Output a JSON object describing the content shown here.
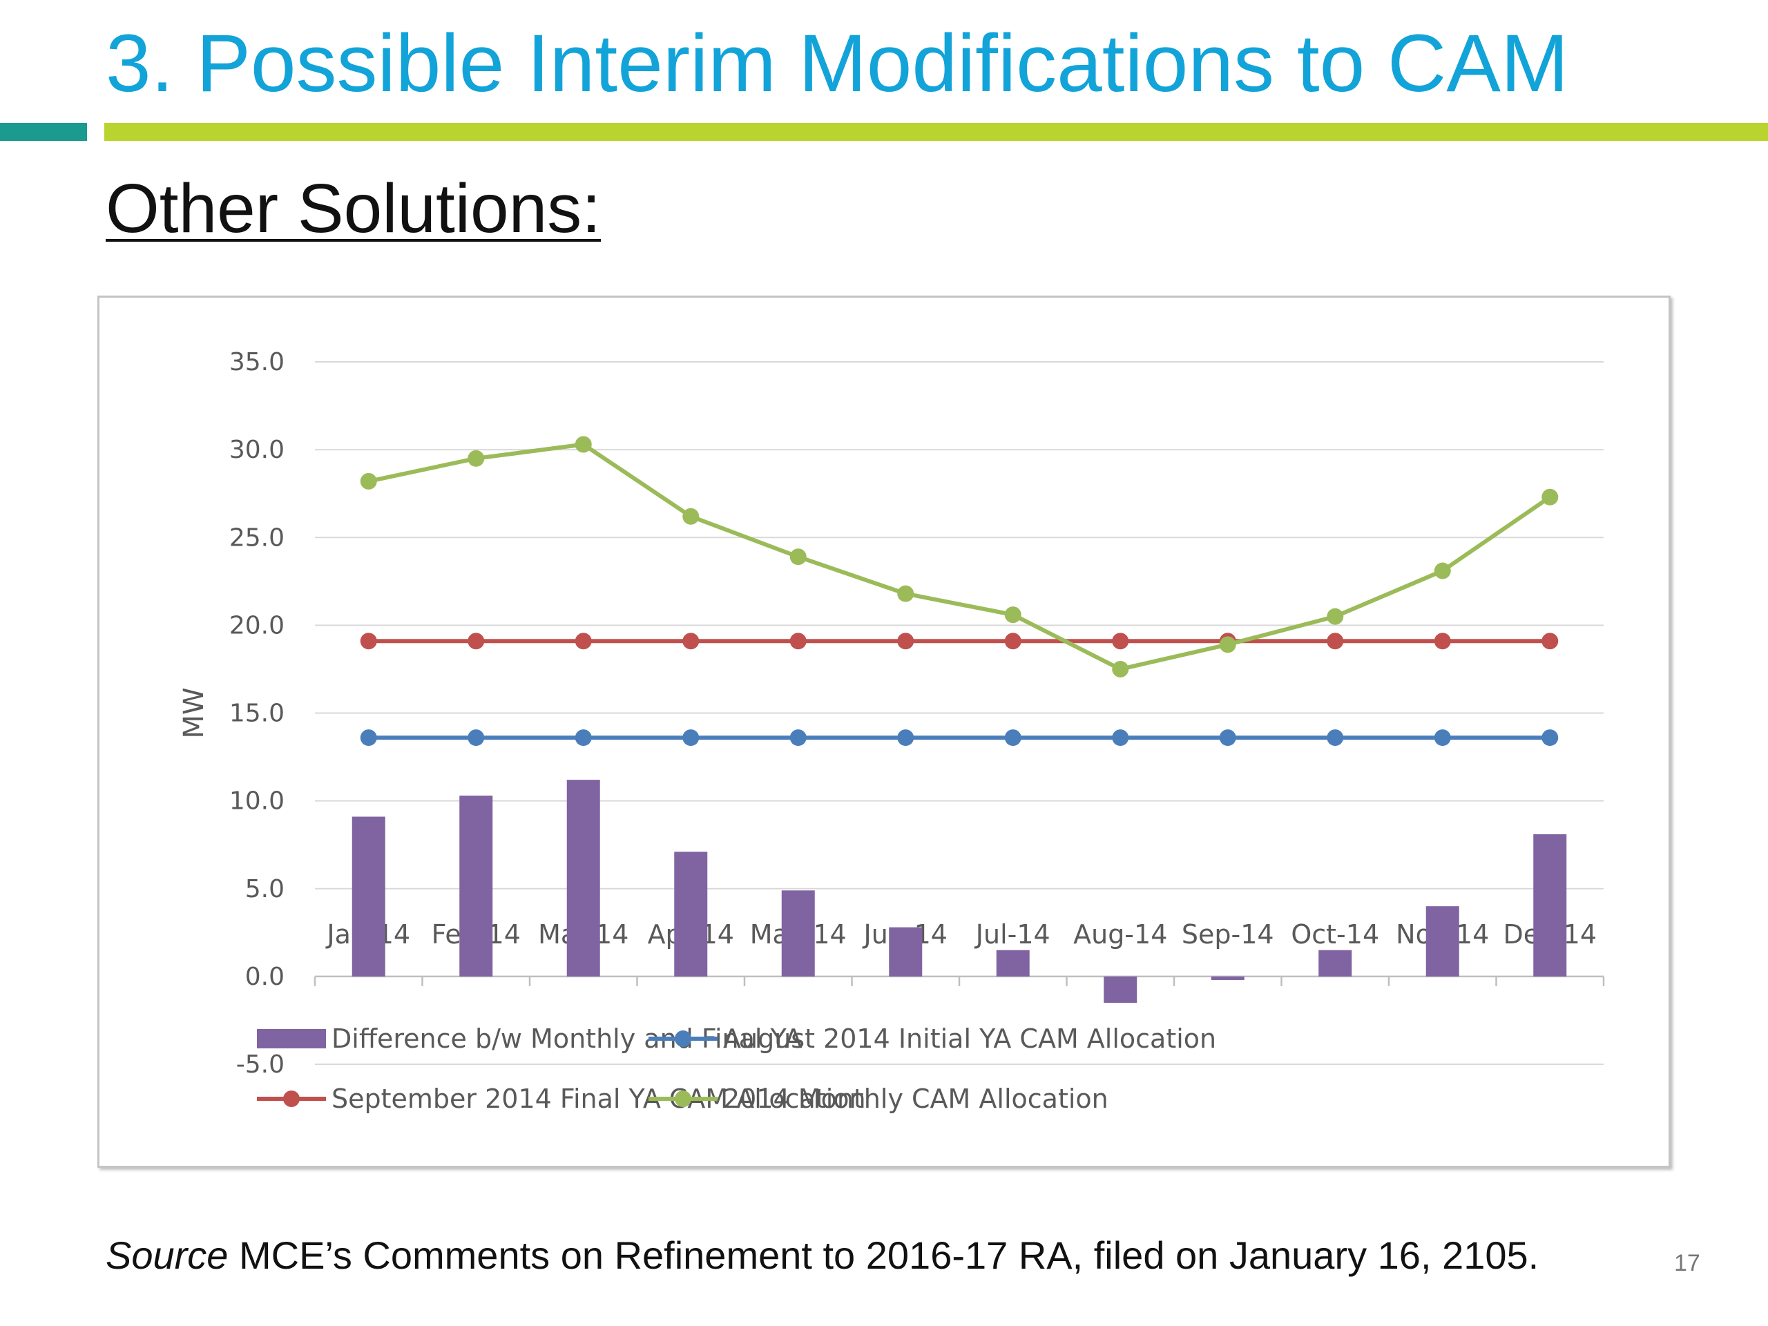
{
  "slide": {
    "title": "3. Possible Interim Modifications to CAM",
    "subtitle": "Other Solutions:",
    "source_label": "Source",
    "source_text": " MCE’s Comments on Refinement to 2016-17 RA, filed on January 16, 2105.",
    "page_number": "17"
  },
  "colors": {
    "title": "#12a3d9",
    "rule_teal": "#1b9a8f",
    "rule_green": "#b9d42e"
  },
  "chart_data": {
    "type": "bar",
    "title": "",
    "xlabel": "",
    "ylabel": "MW",
    "ylim": [
      -5,
      35
    ],
    "y_ticks": [
      "35.0",
      "30.0",
      "25.0",
      "20.0",
      "15.0",
      "10.0",
      "5.0",
      "0.0",
      "-5.0"
    ],
    "y_tick_values": [
      35,
      30,
      25,
      20,
      15,
      10,
      5,
      0,
      -5
    ],
    "grid": true,
    "legend_position": "bottom",
    "categories": [
      "Jan-14",
      "Feb-14",
      "Mar-14",
      "Apr-14",
      "May-14",
      "Jun-14",
      "Jul-14",
      "Aug-14",
      "Sep-14",
      "Oct-14",
      "Nov-14",
      "Dec-14"
    ],
    "series": [
      {
        "name": "Difference b/w Monthly and Final YA",
        "type": "bar",
        "color": "#8064a2",
        "values": [
          9.1,
          10.3,
          11.2,
          7.1,
          4.9,
          2.8,
          1.5,
          -1.5,
          -0.2,
          1.5,
          4.0,
          8.1
        ]
      },
      {
        "name": "August 2014 Initial YA CAM Allocation",
        "type": "line",
        "color": "#4a7ebb",
        "values": [
          13.6,
          13.6,
          13.6,
          13.6,
          13.6,
          13.6,
          13.6,
          13.6,
          13.6,
          13.6,
          13.6,
          13.6
        ]
      },
      {
        "name": "September 2014 Final YA CAM Allocation",
        "type": "line",
        "color": "#c0504d",
        "values": [
          19.1,
          19.1,
          19.1,
          19.1,
          19.1,
          19.1,
          19.1,
          19.1,
          19.1,
          19.1,
          19.1,
          19.1
        ]
      },
      {
        "name": "2014 Monthly CAM Allocation",
        "type": "line",
        "color": "#9bbb59",
        "values": [
          28.2,
          29.5,
          30.3,
          26.2,
          23.9,
          21.8,
          20.6,
          17.5,
          18.9,
          20.5,
          23.1,
          27.3
        ]
      }
    ]
  }
}
